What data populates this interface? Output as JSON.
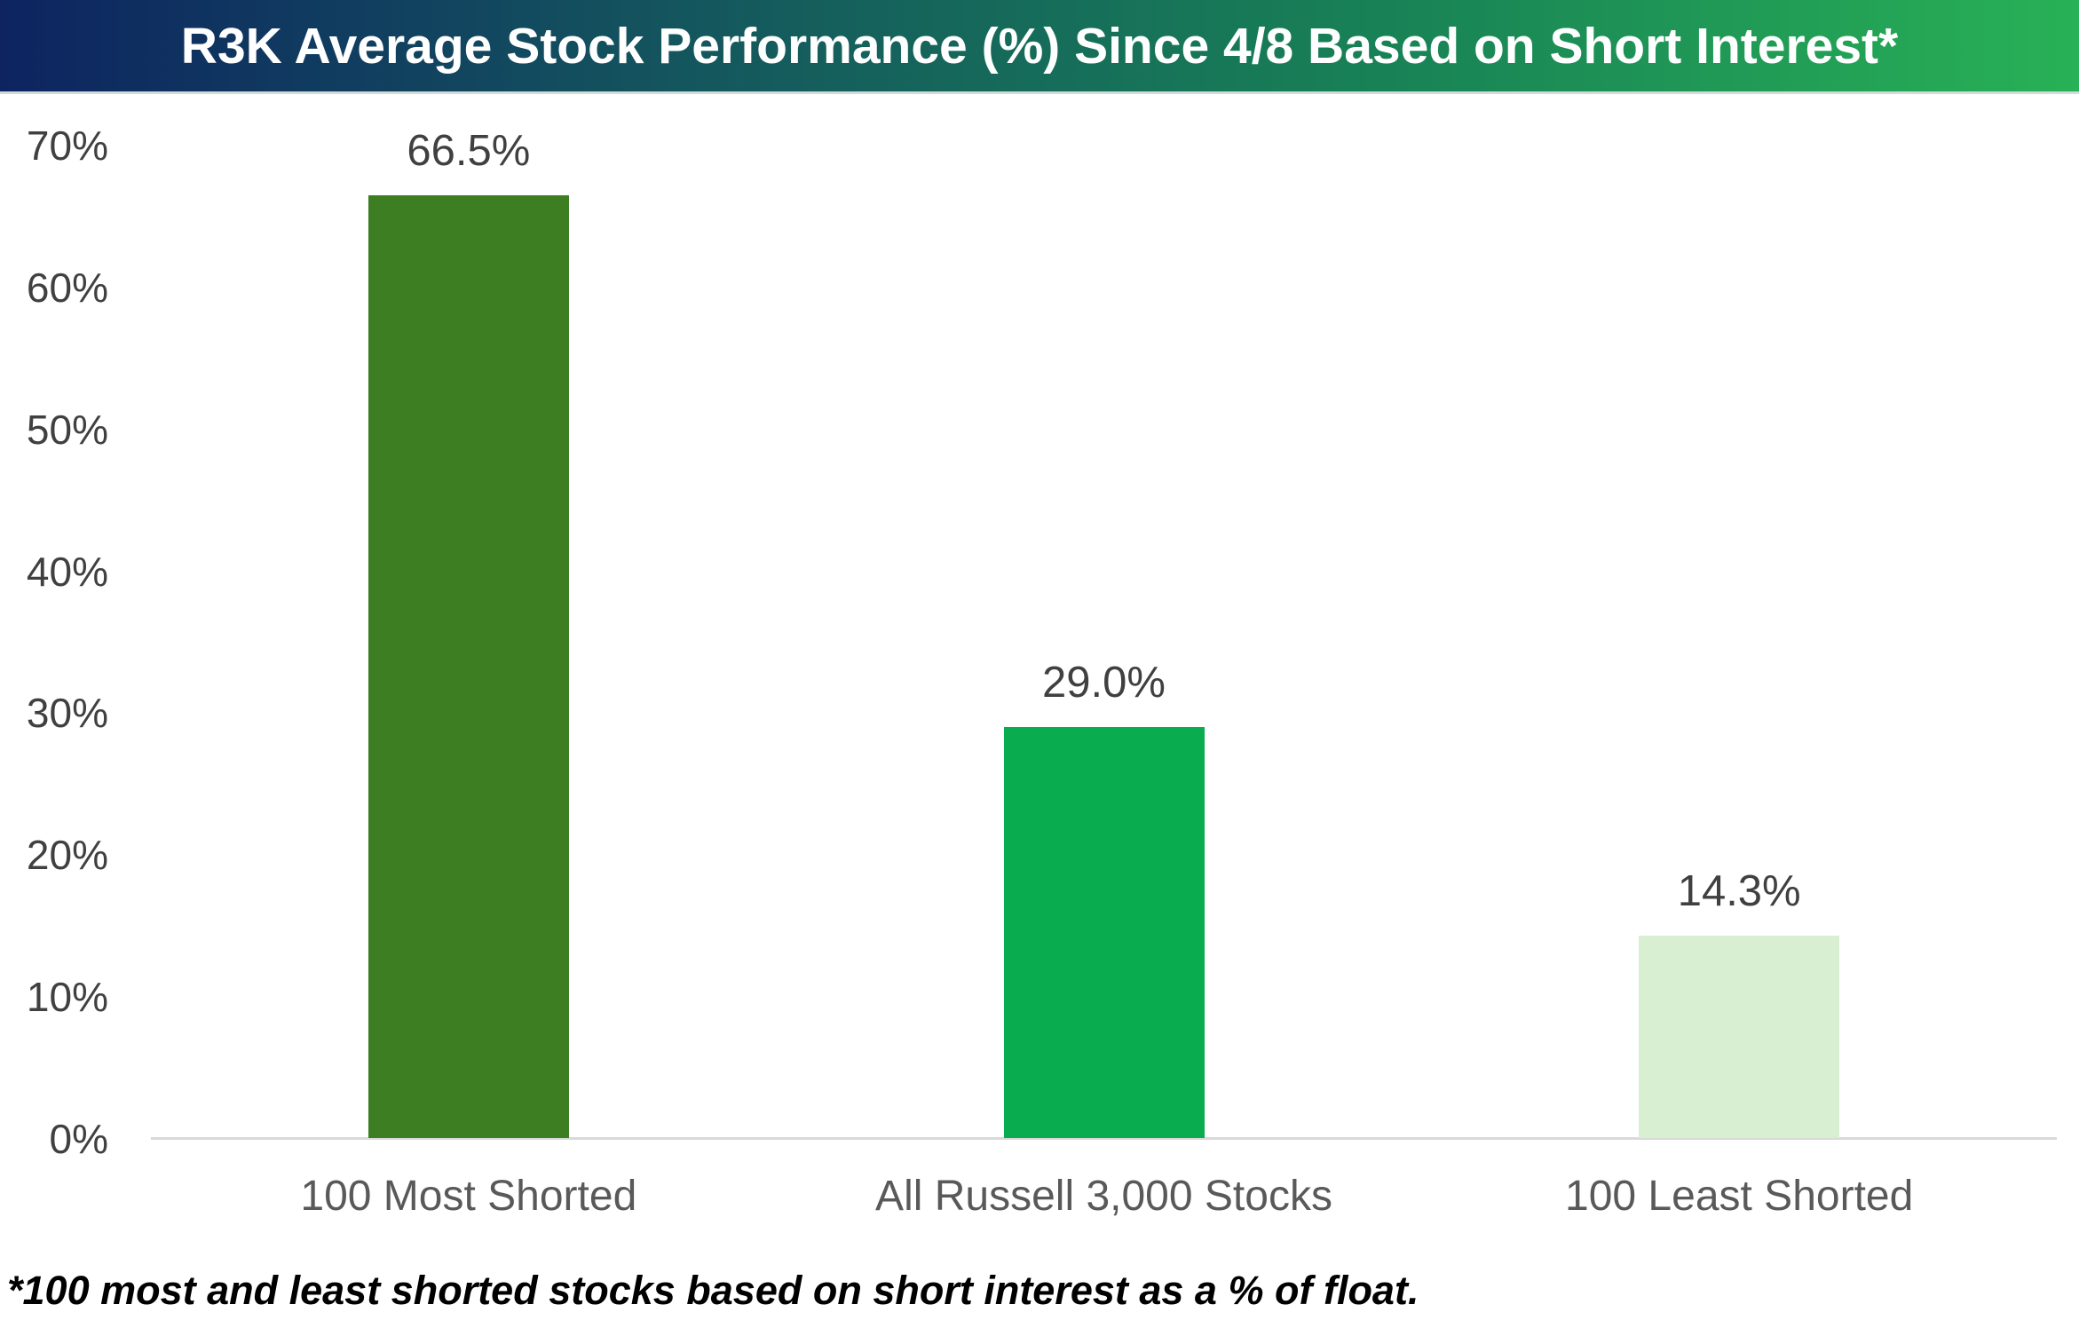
{
  "header": {
    "title": "R3K Average Stock Performance (%) Since 4/8 Based on Short Interest*"
  },
  "chart_data": {
    "type": "bar",
    "title": "R3K Average Stock Performance (%) Since 4/8 Based on Short Interest*",
    "categories": [
      "100 Most Shorted",
      "All Russell 3,000 Stocks",
      "100 Least Shorted"
    ],
    "values": [
      66.5,
      29.0,
      14.3
    ],
    "value_labels": [
      "66.5%",
      "29.0%",
      "14.3%"
    ],
    "bar_colors": [
      "#3e7e23",
      "#0aac50",
      "#d8f0d1"
    ],
    "xlabel": "",
    "ylabel": "",
    "ylim": [
      0,
      70
    ],
    "yticks": [
      0,
      10,
      20,
      30,
      40,
      50,
      60,
      70
    ],
    "ytick_labels": [
      "0%",
      "10%",
      "20%",
      "30%",
      "40%",
      "50%",
      "60%",
      "70%"
    ],
    "grid": false,
    "legend": false,
    "plot_background": "#ffffff"
  },
  "footnote": {
    "text": "*100 most and least shorted stocks based on short interest as a % of float."
  },
  "colors": {
    "header_gradient_start": "#0d2461",
    "header_gradient_mid": "#14565e",
    "header_gradient_end": "#28b156",
    "title_text": "#ffffff",
    "axis_line": "#d9d9d9",
    "tick_text": "#404040",
    "value_label_text": "#404040",
    "category_text": "#595959",
    "footnote_text": "#000000"
  }
}
